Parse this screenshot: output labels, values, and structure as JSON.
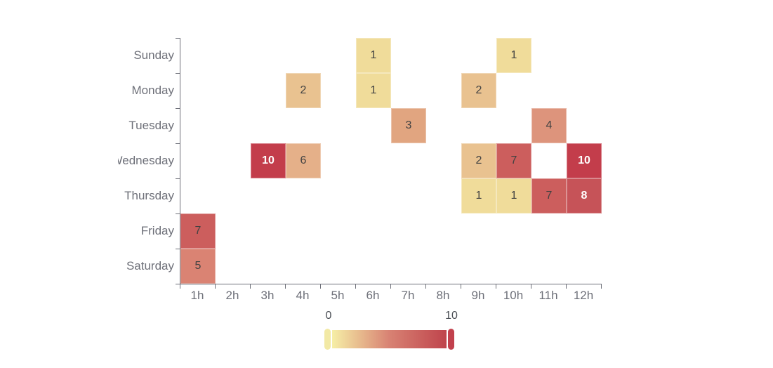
{
  "chart_data": {
    "type": "heatmap",
    "x_categories": [
      "1h",
      "2h",
      "3h",
      "4h",
      "5h",
      "6h",
      "7h",
      "8h",
      "9h",
      "10h",
      "11h",
      "12h"
    ],
    "y_categories": [
      "Sunday",
      "Monday",
      "Tuesday",
      "Wednesday",
      "Thursday",
      "Friday",
      "Saturday"
    ],
    "cells": [
      {
        "day": "Sunday",
        "hour": "6h",
        "row": 0,
        "col": 6,
        "value": "1",
        "color": "#F0DC9A",
        "label_color": "#424242"
      },
      {
        "day": "Sunday",
        "hour": "10h",
        "row": 0,
        "col": 10,
        "value": "1",
        "color": "#F0DC9A",
        "label_color": "#424242"
      },
      {
        "day": "Monday",
        "hour": "4h",
        "row": 1,
        "col": 4,
        "value": "2",
        "color": "#E9C290",
        "label_color": "#424242"
      },
      {
        "day": "Monday",
        "hour": "6h",
        "row": 1,
        "col": 6,
        "value": "1",
        "color": "#F0DC9A",
        "label_color": "#424242"
      },
      {
        "day": "Monday",
        "hour": "9h",
        "row": 1,
        "col": 9,
        "value": "2",
        "color": "#E9C290",
        "label_color": "#424242"
      },
      {
        "day": "Tuesday",
        "hour": "7h",
        "row": 2,
        "col": 7,
        "value": "3",
        "color": "#E1A580",
        "label_color": "#424242"
      },
      {
        "day": "Tuesday",
        "hour": "11h",
        "row": 2,
        "col": 11,
        "value": "4",
        "color": "#DD947C",
        "label_color": "#424242"
      },
      {
        "day": "Wednesday",
        "hour": "3h",
        "row": 3,
        "col": 3,
        "value": "10",
        "color": "#C33D4B",
        "label_color": "#FFFFFF"
      },
      {
        "day": "Wednesday",
        "hour": "4h",
        "row": 3,
        "col": 4,
        "value": "6",
        "color": "#E5B089",
        "label_color": "#424242"
      },
      {
        "day": "Wednesday",
        "hour": "9h",
        "row": 3,
        "col": 9,
        "value": "2",
        "color": "#E9C290",
        "label_color": "#424242"
      },
      {
        "day": "Wednesday",
        "hour": "10h",
        "row": 3,
        "col": 10,
        "value": "7",
        "color": "#CC5E5D",
        "label_color": "#424242"
      },
      {
        "day": "Wednesday",
        "hour": "12h",
        "row": 3,
        "col": 12,
        "value": "10",
        "color": "#C33D4B",
        "label_color": "#FFFFFF"
      },
      {
        "day": "Thursday",
        "hour": "9h",
        "row": 4,
        "col": 9,
        "value": "1",
        "color": "#F0DC9A",
        "label_color": "#424242"
      },
      {
        "day": "Thursday",
        "hour": "10h",
        "row": 4,
        "col": 10,
        "value": "1",
        "color": "#F0DC9A",
        "label_color": "#424242"
      },
      {
        "day": "Thursday",
        "hour": "11h",
        "row": 4,
        "col": 11,
        "value": "7",
        "color": "#CC5E5D",
        "label_color": "#424242"
      },
      {
        "day": "Thursday",
        "hour": "12h",
        "row": 4,
        "col": 12,
        "value": "8",
        "color": "#C65358",
        "label_color": "#FFFFFF"
      },
      {
        "day": "Friday",
        "hour": "1h",
        "row": 5,
        "col": 1,
        "value": "7",
        "color": "#CC5E5D",
        "label_color": "#424242"
      },
      {
        "day": "Saturday",
        "hour": "1h",
        "row": 6,
        "col": 1,
        "value": "5",
        "color": "#DA8373",
        "label_color": "#424242"
      }
    ],
    "visual_map": {
      "min_label": "0",
      "max_label": "10",
      "gradient": [
        "#F6EFA6",
        "#D88273",
        "#BF444C"
      ],
      "min_handle_color": "#F2E9A5",
      "max_handle_color": "#C2414D"
    },
    "axis_color": "#6E7079",
    "axis_label_color": "#6E7079",
    "legend_label_color": "#4A4E54"
  }
}
